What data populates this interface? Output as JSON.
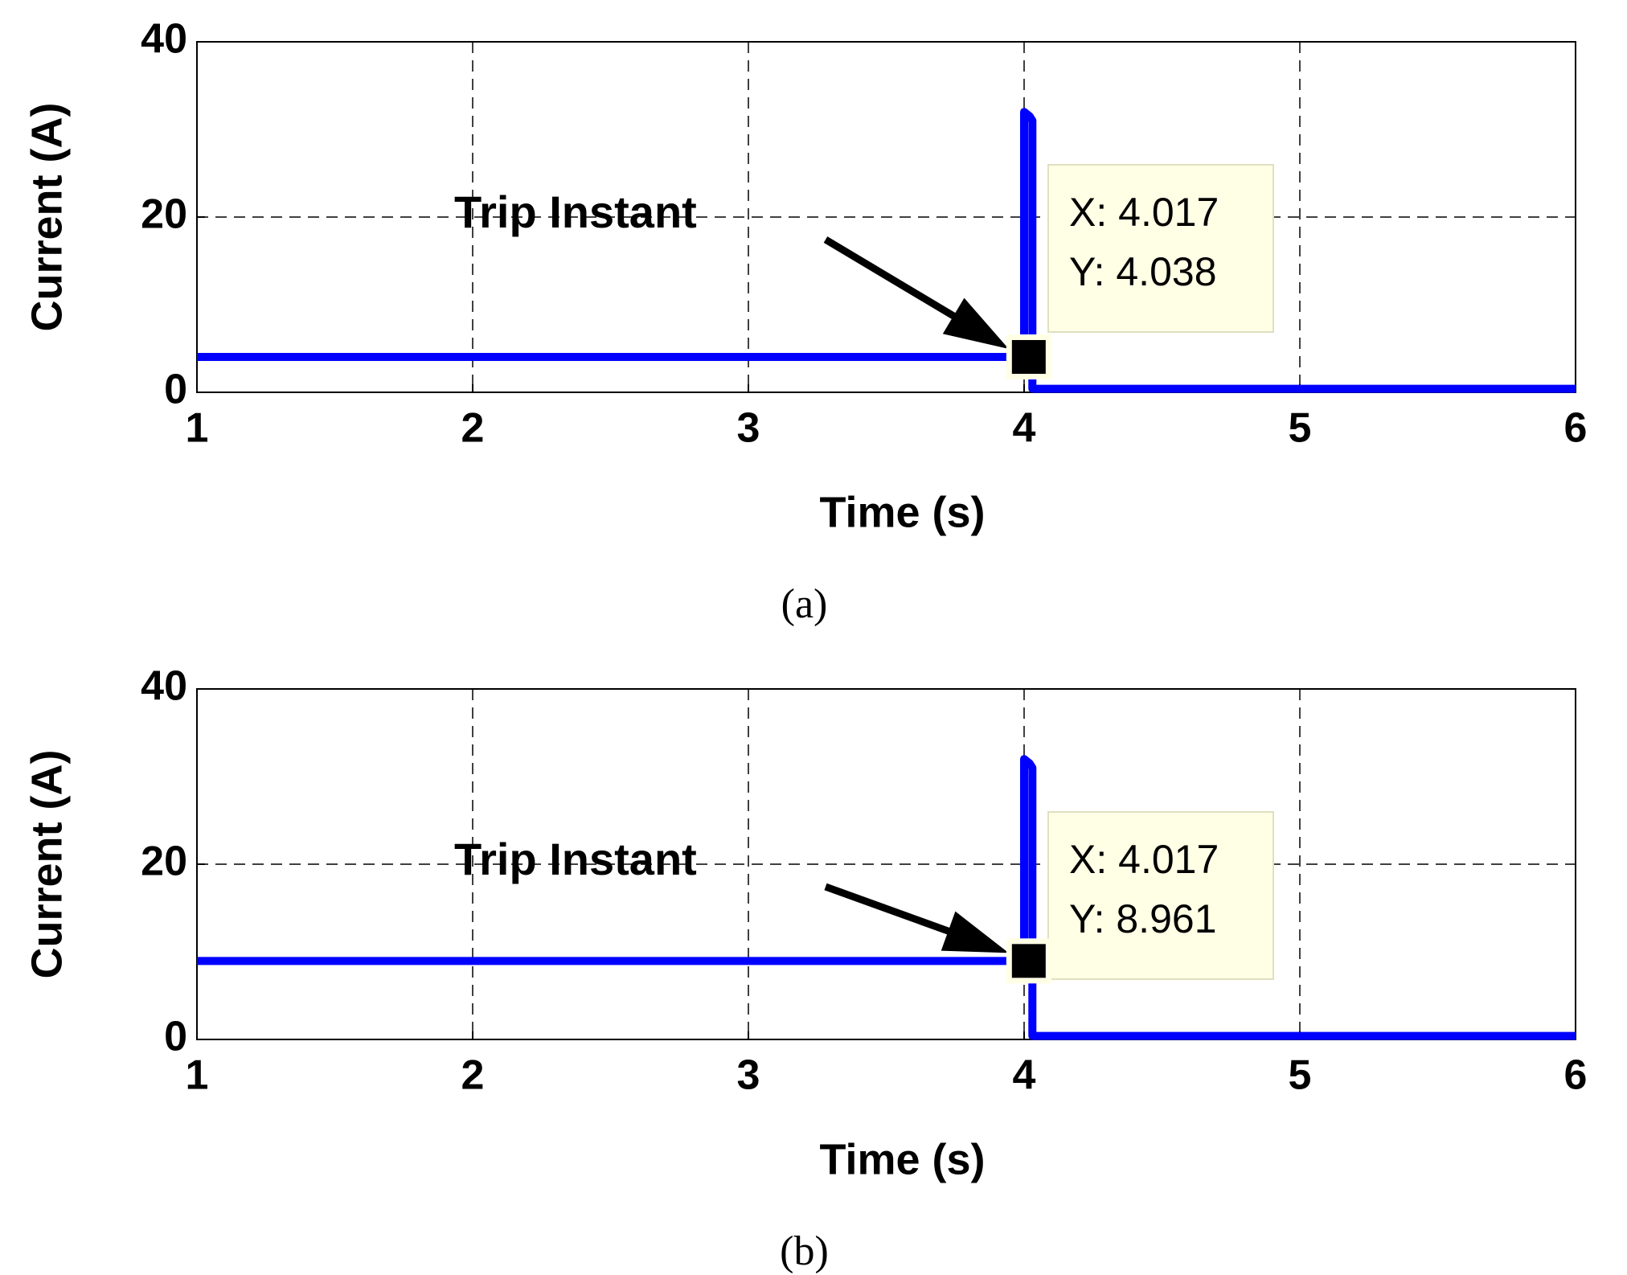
{
  "chart_data": [
    {
      "type": "line",
      "xlabel": "Time (s)",
      "ylabel": "Current (A)",
      "caption": "(a)",
      "xlim": [
        1,
        6
      ],
      "ylim": [
        0,
        40
      ],
      "xticks": [
        1,
        2,
        3,
        4,
        5,
        6
      ],
      "yticks": [
        0,
        20,
        40
      ],
      "grid": true,
      "x": [
        1,
        4.0,
        4.0,
        4.02,
        4.03,
        4.03,
        6
      ],
      "series": [
        {
          "color": "#0000ff",
          "values": [
            4.038,
            4.038,
            32,
            31.5,
            31,
            0.4,
            0.4
          ]
        }
      ],
      "annotation": "Trip Instant",
      "datatip": {
        "x": 4.017,
        "y": 4.038,
        "x_label": "X: 4.017",
        "y_label": "Y: 4.038"
      }
    },
    {
      "type": "line",
      "xlabel": "Time (s)",
      "ylabel": "Current (A)",
      "caption": "(b)",
      "xlim": [
        1,
        6
      ],
      "ylim": [
        0,
        40
      ],
      "xticks": [
        1,
        2,
        3,
        4,
        5,
        6
      ],
      "yticks": [
        0,
        20,
        40
      ],
      "grid": true,
      "x": [
        1,
        4.0,
        4.0,
        4.02,
        4.03,
        4.03,
        6
      ],
      "series": [
        {
          "color": "#0000ff",
          "values": [
            8.961,
            8.961,
            32,
            31.5,
            31,
            0.4,
            0.4
          ]
        }
      ],
      "annotation": "Trip Instant",
      "datatip": {
        "x": 4.017,
        "y": 8.961,
        "x_label": "X: 4.017",
        "y_label": "Y: 8.961"
      }
    }
  ]
}
